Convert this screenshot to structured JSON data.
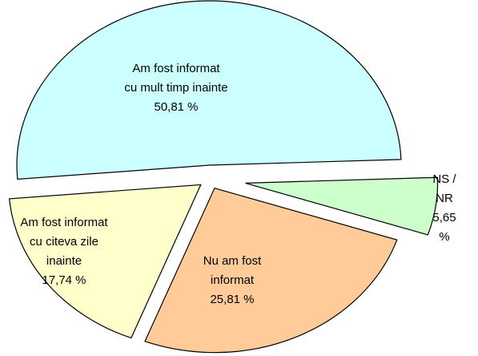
{
  "chart_data": {
    "type": "pie",
    "categories": [
      "NS / NR",
      "Nu am fost\ninformat",
      "Am fost informat\ncu citeva zile\ninainte",
      "Am fost informat\ncu mult timp inainte"
    ],
    "values": [
      5.65,
      25.81,
      17.74,
      50.81
    ],
    "value_labels": [
      "5,65 %",
      "25,81 %",
      "17,74 %",
      "50,81 %"
    ],
    "colors": [
      "#ccffcc",
      "#ffcc99",
      "#ffffcc",
      "#ccffff"
    ]
  }
}
